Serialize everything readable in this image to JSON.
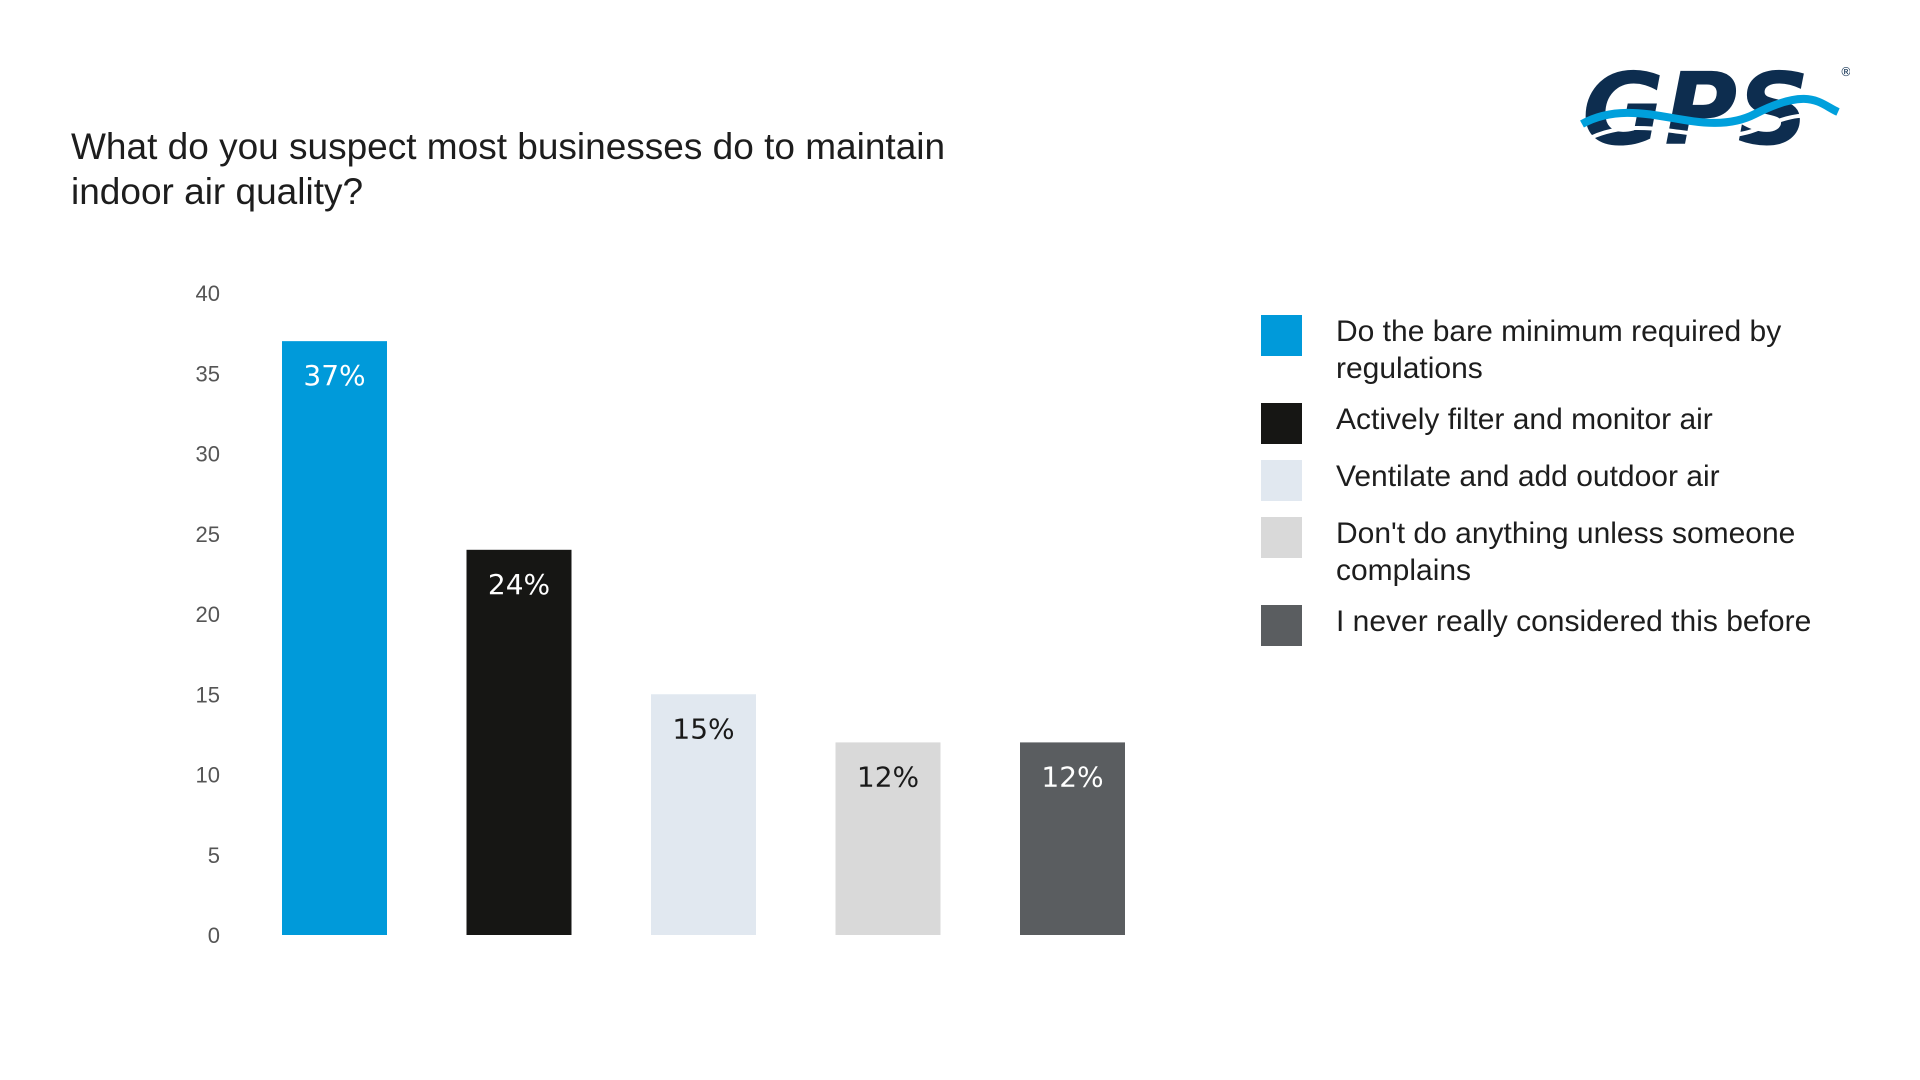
{
  "header": {
    "title": "What do you suspect most businesses do to maintain indoor air quality?"
  },
  "logo": {
    "text": "GPS",
    "registered_mark": "®",
    "colors": {
      "text": "#0d2d4f",
      "wave": "#00a0dc"
    }
  },
  "chart_data": {
    "type": "bar",
    "title": "What do you suspect most businesses do to maintain indoor air quality?",
    "xlabel": "",
    "ylabel": "",
    "ylim": [
      0,
      40
    ],
    "yticks": [
      0,
      5,
      10,
      15,
      20,
      25,
      30,
      35,
      40
    ],
    "grid": false,
    "legend_position": "right",
    "categories": [
      "Do the bare minimum required by regulations",
      "Actively filter and monitor air",
      "Ventilate and add outdoor air",
      "Don't do anything unless someone complains",
      "I never really considered this before"
    ],
    "values": [
      37,
      24,
      15,
      12,
      12
    ],
    "data_labels": [
      "37%",
      "24%",
      "15%",
      "12%",
      "12%"
    ],
    "colors": [
      "#009ada",
      "#161614",
      "#e1e8f0",
      "#d9d9d9",
      "#5a5d60"
    ],
    "label_colors": [
      "#ffffff",
      "#ffffff",
      "#1a1a1a",
      "#1a1a1a",
      "#ffffff"
    ]
  },
  "legend": {
    "items": [
      {
        "label": "Do the bare minimum required by regulations",
        "color": "#009ada"
      },
      {
        "label": "Actively filter and monitor air",
        "color": "#161614"
      },
      {
        "label": "Ventilate and add outdoor air",
        "color": "#e1e8f0"
      },
      {
        "label": "Don't do anything unless someone complains",
        "color": "#d9d9d9"
      },
      {
        "label": "I never really considered this before",
        "color": "#5a5d60"
      }
    ]
  }
}
